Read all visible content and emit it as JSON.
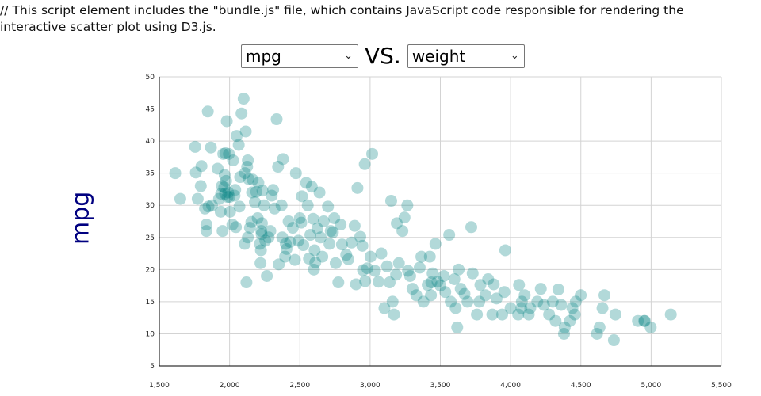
{
  "intro_text": "// This script element includes the \"bundle.js\" file, which contains JavaScript code responsible for rendering the interactive scatter plot using D3.js.",
  "controls": {
    "y_select_value": "mpg",
    "vs_label": "VS.",
    "x_select_value": "weight"
  },
  "colors": {
    "point": "#008080",
    "axis_title": "#000080",
    "grid": "#d3d3d3"
  },
  "icons": {
    "select_chevron": "chevron-down-icon"
  },
  "chart_data": {
    "type": "scatter",
    "title": "",
    "xlabel": "",
    "ylabel": "mpg",
    "xlim": [
      1500,
      5500
    ],
    "ylim": [
      5,
      50
    ],
    "x_ticks": [
      1500,
      2000,
      2500,
      3000,
      3500,
      4000,
      4500,
      5000,
      5500
    ],
    "x_tick_labels": [
      "1,500",
      "2,000",
      "2,500",
      "3,000",
      "3,500",
      "4,000",
      "4,500",
      "5,000",
      "5,500"
    ],
    "y_ticks": [
      5,
      10,
      15,
      20,
      25,
      30,
      35,
      40,
      45,
      50
    ],
    "y_tick_labels": [
      "5",
      "10",
      "15",
      "20",
      "25",
      "30",
      "35",
      "40",
      "45",
      "50"
    ],
    "grid": true,
    "points": [
      [
        1613,
        35
      ],
      [
        1649,
        31
      ],
      [
        1755,
        39.1
      ],
      [
        1760,
        35.1
      ],
      [
        1773,
        31
      ],
      [
        1795,
        33
      ],
      [
        1800,
        36.1
      ],
      [
        1825,
        29.5
      ],
      [
        1835,
        27
      ],
      [
        1835,
        26
      ],
      [
        1845,
        44.6
      ],
      [
        1850,
        29.8
      ],
      [
        1867,
        39
      ],
      [
        1875,
        30
      ],
      [
        1915,
        35.7
      ],
      [
        1925,
        31
      ],
      [
        1937,
        29
      ],
      [
        1940,
        31.8
      ],
      [
        1945,
        33
      ],
      [
        1950,
        26
      ],
      [
        1955,
        38
      ],
      [
        1962,
        32.8
      ],
      [
        1965,
        34.7
      ],
      [
        1968,
        31.8
      ],
      [
        1970,
        38.1
      ],
      [
        1975,
        33.8
      ],
      [
        1980,
        43.1
      ],
      [
        1985,
        31.3
      ],
      [
        1990,
        32
      ],
      [
        1995,
        38
      ],
      [
        2000,
        31.3
      ],
      [
        2003,
        29
      ],
      [
        2020,
        27
      ],
      [
        2025,
        37
      ],
      [
        2035,
        31.5
      ],
      [
        2040,
        32.4
      ],
      [
        2045,
        26.6
      ],
      [
        2050,
        40.8
      ],
      [
        2065,
        39.4
      ],
      [
        2070,
        29.8
      ],
      [
        2075,
        34.4
      ],
      [
        2085,
        44.3
      ],
      [
        2100,
        46.6
      ],
      [
        2108,
        24
      ],
      [
        2110,
        35
      ],
      [
        2115,
        41.5
      ],
      [
        2120,
        18
      ],
      [
        2125,
        36
      ],
      [
        2130,
        37
      ],
      [
        2130,
        25
      ],
      [
        2135,
        34.1
      ],
      [
        2145,
        26.5
      ],
      [
        2155,
        27.4
      ],
      [
        2160,
        32
      ],
      [
        2164,
        34
      ],
      [
        2180,
        30.5
      ],
      [
        2190,
        32.1
      ],
      [
        2200,
        28
      ],
      [
        2205,
        33.5
      ],
      [
        2215,
        24
      ],
      [
        2220,
        21
      ],
      [
        2223,
        23
      ],
      [
        2226,
        26
      ],
      [
        2228,
        25.5
      ],
      [
        2230,
        27.2
      ],
      [
        2234,
        32.3
      ],
      [
        2245,
        30
      ],
      [
        2254,
        24.5
      ],
      [
        2265,
        19
      ],
      [
        2278,
        25
      ],
      [
        2290,
        26
      ],
      [
        2300,
        31.5
      ],
      [
        2310,
        32.4
      ],
      [
        2320,
        29.5
      ],
      [
        2335,
        43.4
      ],
      [
        2345,
        36
      ],
      [
        2350,
        20.8
      ],
      [
        2370,
        30
      ],
      [
        2375,
        25
      ],
      [
        2380,
        37.2
      ],
      [
        2395,
        22
      ],
      [
        2400,
        24
      ],
      [
        2405,
        23.2
      ],
      [
        2420,
        27.5
      ],
      [
        2430,
        24.3
      ],
      [
        2450,
        26.5
      ],
      [
        2465,
        21.5
      ],
      [
        2472,
        35
      ],
      [
        2490,
        24.5
      ],
      [
        2500,
        28
      ],
      [
        2510,
        27.3
      ],
      [
        2515,
        31.4
      ],
      [
        2525,
        23.8
      ],
      [
        2545,
        33.5
      ],
      [
        2556,
        30
      ],
      [
        2565,
        21.7
      ],
      [
        2575,
        25.4
      ],
      [
        2585,
        32.9
      ],
      [
        2595,
        27.9
      ],
      [
        2600,
        20
      ],
      [
        2605,
        23
      ],
      [
        2610,
        21.1
      ],
      [
        2625,
        26.4
      ],
      [
        2640,
        32
      ],
      [
        2648,
        25
      ],
      [
        2660,
        22
      ],
      [
        2670,
        27.5
      ],
      [
        2700,
        29.8
      ],
      [
        2711,
        24
      ],
      [
        2720,
        26
      ],
      [
        2735,
        25.8
      ],
      [
        2745,
        28
      ],
      [
        2755,
        21
      ],
      [
        2774,
        18
      ],
      [
        2790,
        27
      ],
      [
        2800,
        23.9
      ],
      [
        2830,
        22.3
      ],
      [
        2845,
        21.6
      ],
      [
        2868,
        24.2
      ],
      [
        2890,
        26.8
      ],
      [
        2900,
        17.7
      ],
      [
        2910,
        32.7
      ],
      [
        2930,
        25.1
      ],
      [
        2945,
        23.7
      ],
      [
        2950,
        19.9
      ],
      [
        2962,
        36.4
      ],
      [
        2965,
        18.2
      ],
      [
        2980,
        20.2
      ],
      [
        3003,
        22
      ],
      [
        3015,
        38
      ],
      [
        3035,
        19.8
      ],
      [
        3060,
        18.1
      ],
      [
        3080,
        22.5
      ],
      [
        3102,
        14
      ],
      [
        3120,
        20.5
      ],
      [
        3139,
        18
      ],
      [
        3150,
        30.7
      ],
      [
        3160,
        15
      ],
      [
        3170,
        13
      ],
      [
        3185,
        19.2
      ],
      [
        3190,
        27.2
      ],
      [
        3205,
        21
      ],
      [
        3230,
        26
      ],
      [
        3245,
        28.1
      ],
      [
        3265,
        30
      ],
      [
        3270,
        19.8
      ],
      [
        3285,
        19
      ],
      [
        3302,
        17
      ],
      [
        3329,
        16
      ],
      [
        3353,
        20.3
      ],
      [
        3365,
        22
      ],
      [
        3380,
        15
      ],
      [
        3410,
        17.6
      ],
      [
        3425,
        22
      ],
      [
        3433,
        16
      ],
      [
        3436,
        18
      ],
      [
        3445,
        19.4
      ],
      [
        3465,
        24
      ],
      [
        3480,
        18.1
      ],
      [
        3500,
        17.5
      ],
      [
        3525,
        19
      ],
      [
        3535,
        16.5
      ],
      [
        3563,
        25.4
      ],
      [
        3574,
        15
      ],
      [
        3600,
        18.5
      ],
      [
        3609,
        14
      ],
      [
        3620,
        11
      ],
      [
        3630,
        20
      ],
      [
        3645,
        17
      ],
      [
        3672,
        16.2
      ],
      [
        3693,
        15
      ],
      [
        3720,
        26.6
      ],
      [
        3730,
        19.4
      ],
      [
        3760,
        13
      ],
      [
        3777,
        15
      ],
      [
        3785,
        17.6
      ],
      [
        3821,
        16
      ],
      [
        3840,
        18.5
      ],
      [
        3870,
        13
      ],
      [
        3880,
        17.7
      ],
      [
        3900,
        15.5
      ],
      [
        3940,
        13
      ],
      [
        3955,
        16.5
      ],
      [
        3962,
        23
      ],
      [
        4000,
        14
      ],
      [
        4054,
        13
      ],
      [
        4060,
        17.6
      ],
      [
        4077,
        14
      ],
      [
        4080,
        15
      ],
      [
        4100,
        16
      ],
      [
        4129,
        13
      ],
      [
        4140,
        14
      ],
      [
        4190,
        15
      ],
      [
        4215,
        17
      ],
      [
        4237,
        14.5
      ],
      [
        4274,
        13
      ],
      [
        4300,
        15
      ],
      [
        4320,
        12
      ],
      [
        4340,
        16.9
      ],
      [
        4360,
        14.5
      ],
      [
        4380,
        10
      ],
      [
        4385,
        11
      ],
      [
        4422,
        12
      ],
      [
        4440,
        14
      ],
      [
        4457,
        13
      ],
      [
        4464,
        15
      ],
      [
        4499,
        16
      ],
      [
        4615,
        10
      ],
      [
        4633,
        11
      ],
      [
        4654,
        14
      ],
      [
        4668,
        16
      ],
      [
        4735,
        9
      ],
      [
        4746,
        13
      ],
      [
        4906,
        12
      ],
      [
        4951,
        12
      ],
      [
        4955,
        12
      ],
      [
        4997,
        11
      ],
      [
        5140,
        13
      ]
    ]
  }
}
